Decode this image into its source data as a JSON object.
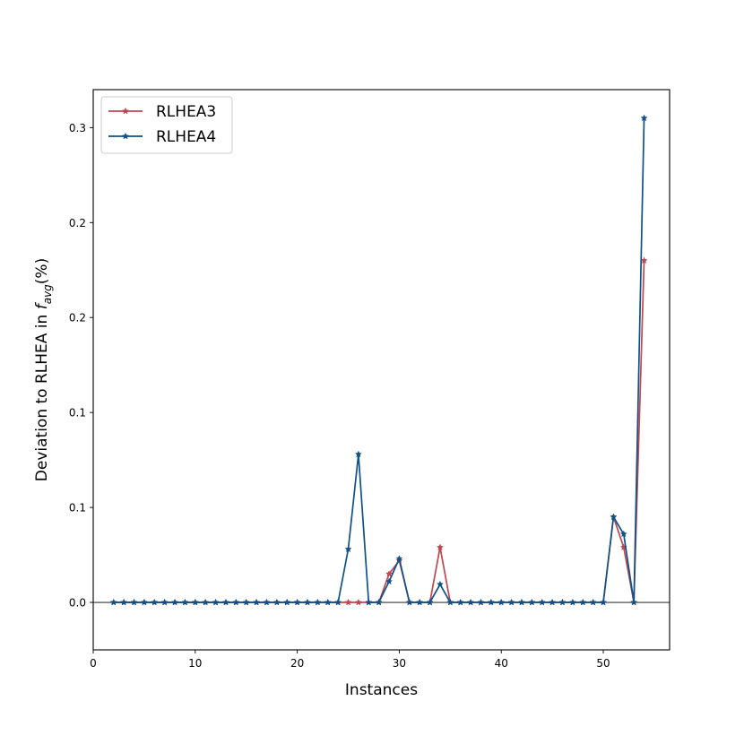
{
  "chart_data": {
    "type": "line",
    "xlabel": "Instances",
    "ylabel": "Deviation to RLHEA in f_avg(%)",
    "ylabel_parts": {
      "prefix": "Deviation to RLHEA in ",
      "f": "f",
      "sub": "avg",
      "suffix": "(%)"
    },
    "xlim": [
      0,
      56.5
    ],
    "ylim": [
      -0.025,
      0.27
    ],
    "xticks": [
      0,
      10,
      20,
      30,
      40,
      50
    ],
    "yticks": [
      0.0,
      0.05,
      0.1,
      0.15,
      0.2,
      0.25
    ],
    "ytick_labels": [
      "0.0",
      "0.1",
      "0.1",
      "0.2",
      "0.2",
      "0.3"
    ],
    "zero_line": true,
    "grid": false,
    "legend_position": "top-left",
    "x": [
      2,
      3,
      4,
      5,
      6,
      7,
      8,
      9,
      10,
      11,
      12,
      13,
      14,
      15,
      16,
      17,
      18,
      19,
      20,
      21,
      22,
      23,
      24,
      25,
      26,
      27,
      28,
      29,
      30,
      31,
      32,
      33,
      34,
      35,
      36,
      37,
      38,
      39,
      40,
      41,
      42,
      43,
      44,
      45,
      46,
      47,
      48,
      49,
      50,
      51,
      52,
      53,
      54
    ],
    "series": [
      {
        "name": "RLHEA3",
        "color": "#c0464f",
        "values": [
          0,
          0,
          0,
          0,
          0,
          0,
          0,
          0,
          0,
          0,
          0,
          0,
          0,
          0,
          0,
          0,
          0,
          0,
          0,
          0,
          0,
          0,
          0,
          0,
          0,
          0,
          0,
          0.015,
          0.022,
          0,
          0,
          0,
          0.029,
          0,
          0,
          0,
          0,
          0,
          0,
          0,
          0,
          0,
          0,
          0,
          0,
          0,
          0,
          0,
          0,
          0.045,
          0.029,
          0,
          0.18
        ]
      },
      {
        "name": "RLHEA4",
        "color": "#0f5189",
        "values": [
          0,
          0,
          0,
          0,
          0,
          0,
          0,
          0,
          0,
          0,
          0,
          0,
          0,
          0,
          0,
          0,
          0,
          0,
          0,
          0,
          0,
          0,
          0,
          0.028,
          0.078,
          0,
          0,
          0.011,
          0.023,
          0,
          0,
          0,
          0.0095,
          0,
          0,
          0,
          0,
          0,
          0,
          0,
          0,
          0,
          0,
          0,
          0,
          0,
          0,
          0,
          0,
          0.045,
          0.036,
          0,
          0.255
        ]
      }
    ]
  }
}
